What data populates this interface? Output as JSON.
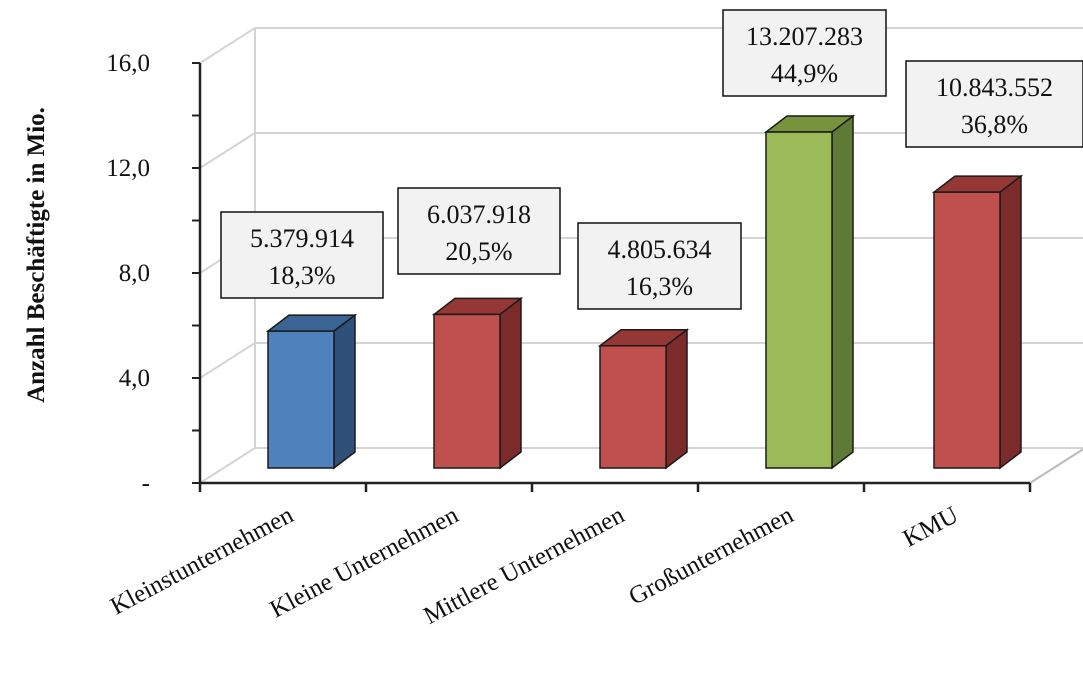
{
  "chart_data": {
    "type": "bar",
    "ylabel": "Anzahl Beschäftigte in Mio.",
    "xlabel": "",
    "ylim": [
      0,
      16
    ],
    "yticks": [
      {
        "value": 0,
        "label": "-"
      },
      {
        "value": 4,
        "label": "4,0"
      },
      {
        "value": 8,
        "label": "8,0"
      },
      {
        "value": 12,
        "label": "12,0"
      },
      {
        "value": 16,
        "label": "16,0"
      }
    ],
    "grid": true,
    "categories": [
      "Kleinstunternehmen",
      "Kleine Unternehmen",
      "Mittlere Unternehmen",
      "Großunternehmen",
      "KMU"
    ],
    "values": [
      5.379914,
      6.037918,
      4.805634,
      13.207283,
      10.843552
    ],
    "data_labels": [
      {
        "count": "5.379.914",
        "share": "18,3%"
      },
      {
        "count": "6.037.918",
        "share": "20,5%"
      },
      {
        "count": "4.805.634",
        "share": "16,3%"
      },
      {
        "count": "13.207.283",
        "share": "44,9%"
      },
      {
        "count": "10.843.552",
        "share": "36,8%"
      }
    ],
    "colors": [
      {
        "front": "#4f81bd",
        "side": "#2f5079",
        "top": "#3a6494"
      },
      {
        "front": "#c0504d",
        "side": "#7b2c2a",
        "top": "#953735"
      },
      {
        "front": "#c0504d",
        "side": "#7b2c2a",
        "top": "#953735"
      },
      {
        "front": "#9bbb59",
        "side": "#5f7a34",
        "top": "#77933c"
      },
      {
        "front": "#c0504d",
        "side": "#7b2c2a",
        "top": "#953735"
      }
    ]
  }
}
